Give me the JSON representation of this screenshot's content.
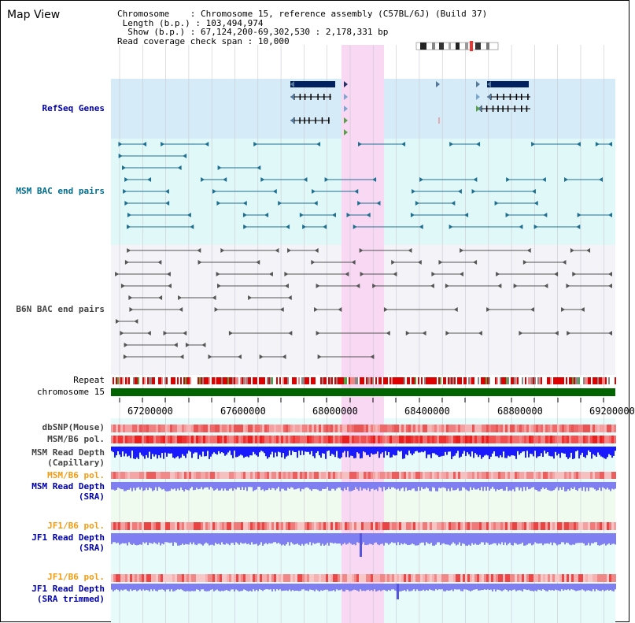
{
  "title": "Map View",
  "info": {
    "chromosome_key": "Chromosome",
    "chromosome_val": "Chromosome 15, reference assembly (C57BL/6J) (Build 37)",
    "length_key": "Length (b.p.)",
    "length_val": "103,494,974",
    "show_key": "Show (b.p.)",
    "show_val": "67,124,200-69,302,530 : 2,178,331 bp",
    "span_key": "Read coverage check span",
    "span_val": "10,000"
  },
  "tracks": {
    "refseq": "RefSeq Genes",
    "msm_bac": "MSM BAC end pairs",
    "b6n_bac": "B6N BAC end pairs",
    "repeat": "Repeat",
    "chromosome": "chromosome 15",
    "dbsnp": "dbSNP(Mouse)",
    "msm_b6_pol_1": "MSM/B6 pol.",
    "msm_depth_cap_1": "MSM Read Depth",
    "msm_depth_cap_2": "(Capillary)",
    "msm_b6_pol_2": "MSM/B6 pol.",
    "msm_depth_sra_1": "MSM Read Depth",
    "msm_depth_sra_2": "(SRA)",
    "jf1_b6_pol_1": "JF1/B6 pol.",
    "jf1_depth_sra_1": "JF1 Read Depth",
    "jf1_depth_sra_2": "(SRA)",
    "jf1_b6_pol_2": "JF1/B6 pol.",
    "jf1_depth_trim_1": "JF1 Read Depth",
    "jf1_depth_trim_2": "(SRA trimmed)"
  },
  "axis_ticks": [
    "67200000",
    "67600000",
    "68000000",
    "68400000",
    "68800000",
    "69200000"
  ],
  "colors": {
    "refseq_bg": "#d6ebf8",
    "msm_bg": "#e0f8f8",
    "b6n_bg": "#f3f3f8",
    "highlight": "#f8d8f2",
    "chromosome_bar": "#006400",
    "gene": "#002060",
    "msm_pair": "#1f6f90",
    "b6n_pair": "#555555",
    "depth_blue": "#1a1aff",
    "depth_light": "#7f7ff2"
  }
}
